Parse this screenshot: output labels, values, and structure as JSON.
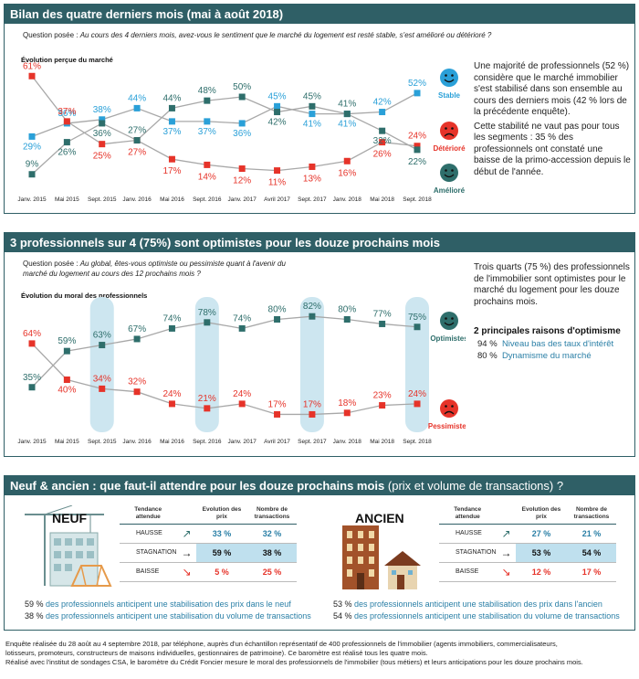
{
  "sections": {
    "s1": {
      "title": "Bilan des quatre derniers mois (mai à août 2018)",
      "question_label": "Question posée :",
      "question_text": "Au cours des 4 derniers mois, avez-vous le sentiment que le marché du logement est resté stable, s'est amélioré ou détérioré ?",
      "subtitle": "Évolution perçue du marché",
      "side_text": [
        "Une majorité de professionnels (52 %) considère que le marché immobilier s'est stabilisé dans son ensemble au cours des derniers mois (42 % lors de la précédente enquête).",
        "Cette stabilité ne vaut pas pour tous les segments : 35 % des professionnels ont constaté une baisse de la primo-accession depuis le début de l'année."
      ]
    },
    "s2": {
      "title": "3 professionnels sur 4 (75%) sont optimistes pour les douze prochains mois",
      "question_label": "Question posée :",
      "question_text": "Au global, êtes-vous optimiste ou pessimiste quant à l'avenir du marché du logement au cours des 12 prochains mois ?",
      "subtitle": "Évolution du moral des professionnels",
      "side_text": [
        "Trois quarts (75 %) des professionnels de l'immobilier sont optimistes pour le marché du logement pour les douze prochains mois."
      ],
      "reasons_title": "2  principales raisons d'optimisme",
      "reasons": [
        {
          "pct": "94 %",
          "label": "Niveau bas des taux d'intérêt"
        },
        {
          "pct": "80 %",
          "label": "Dynamisme du marché"
        }
      ]
    },
    "s3": {
      "title": "Neuf & ancien : que faut-il attendre pour les douze prochains mois",
      "title_light": " (prix et volume de transactions) ?",
      "headers": [
        "Tendance attendue",
        "Evolution des prix",
        "Nombre de transactions"
      ],
      "neuf": {
        "label": "NEUF",
        "rows": [
          {
            "label": "HAUSSE",
            "prix": "33 %",
            "trans": "32 %"
          },
          {
            "label": "STAGNATION",
            "prix": "59 %",
            "trans": "38 %"
          },
          {
            "label": "BAISSE",
            "prix": "5 %",
            "trans": "25 %"
          }
        ],
        "anticip": [
          {
            "pct": "59 %",
            "text": "des professionnels anticipent une stabilisation des prix dans le neuf"
          },
          {
            "pct": "38 %",
            "text": "des professionnels anticipent une stabilisation du volume de transactions"
          }
        ]
      },
      "ancien": {
        "label": "ANCIEN",
        "rows": [
          {
            "label": "HAUSSE",
            "prix": "27 %",
            "trans": "21 %"
          },
          {
            "label": "STAGNATION",
            "prix": "53 %",
            "trans": "54 %"
          },
          {
            "label": "BAISSE",
            "prix": "12 %",
            "trans": "17 %"
          }
        ],
        "anticip": [
          {
            "pct": "53 %",
            "text": "des professionnels anticipent une stabilisation des prix dans l'ancien"
          },
          {
            "pct": "54 %",
            "text": "des professionnels anticipent une stabilisation du volume de transactions"
          }
        ]
      }
    }
  },
  "footnote": [
    "Enquête réalisée du 28 août au 4 septembre 2018, par téléphone, auprès d'un échantillon représentatif de 400 professionnels de l'immobilier (agents immobiliers, commercialisateurs,",
    "lotisseurs,  promoteurs, constructeurs de maisons individuelles, gestionnaires de patrimoine). Ce baromètre est réalisé tous les quatre mois.",
    "Réalisé avec l'institut de sondages CSA, le baromètre du Crédit Foncier mesure le moral des professionnels de l'immobilier (tous métiers) et leurs anticipations pour les douze prochains mois."
  ],
  "colors": {
    "teal": "#2f5f66",
    "blue_series": "#2aa0d8",
    "red_series": "#e63329",
    "dark_series": "#2e6e6b",
    "highlight": "#cde6f0",
    "accent_text": "#2a7fa6"
  },
  "chart_data": [
    {
      "type": "line",
      "categories": [
        "Janv. 2015",
        "Mai 2015",
        "Sept. 2015",
        "Janv. 2016",
        "Mai 2016",
        "Sept. 2016",
        "Janv. 2017",
        "Avril 2017",
        "Sept. 2017",
        "Janv. 2018",
        "Mai 2018",
        "Sept. 2018"
      ],
      "series": [
        {
          "name": "Stable",
          "color": "#2aa0d8",
          "values": [
            29,
            36,
            38,
            44,
            37,
            37,
            36,
            45,
            41,
            41,
            42,
            52
          ],
          "labels": [
            "29%",
            "36%",
            "38%",
            "44%",
            "37%",
            "37%",
            "36%",
            "45%",
            "41%",
            "41%",
            "42%",
            "52%"
          ],
          "icon": "happy-face-icon"
        },
        {
          "name": "Détérioré",
          "color": "#e63329",
          "values": [
            61,
            37,
            25,
            27,
            17,
            14,
            12,
            11,
            13,
            16,
            26,
            24
          ],
          "labels": [
            "61%",
            "37%",
            "25%",
            "27%",
            "17%",
            "14%",
            "12%",
            "11%",
            "13%",
            "16%",
            "26%",
            "24%"
          ],
          "icon": "sad-face-icon"
        },
        {
          "name": "Amélioré",
          "color": "#2e6e6b",
          "values": [
            9,
            26,
            36,
            27,
            44,
            48,
            50,
            42,
            45,
            41,
            32,
            22
          ],
          "labels": [
            "9%",
            "26%",
            "36%",
            "27%",
            "44%",
            "48%",
            "50%",
            "42%",
            "45%",
            "41%",
            "32%",
            "22%"
          ],
          "icon": "happy-face-icon"
        }
      ],
      "ylim": [
        5,
        65
      ],
      "grid": false,
      "legend": "right"
    },
    {
      "type": "line",
      "categories": [
        "Janv. 2015",
        "Mai 2015",
        "Sept. 2015",
        "Janv. 2016",
        "Mai 2016",
        "Sept. 2016",
        "Janv. 2017",
        "Avril 2017",
        "Sept. 2017",
        "Janv. 2018",
        "Mai 2018",
        "Sept. 2018"
      ],
      "highlighted_categories": [
        "Sept. 2015",
        "Sept. 2016",
        "Sept. 2017",
        "Sept. 2018"
      ],
      "series": [
        {
          "name": "Optimistes",
          "color": "#2e6e6b",
          "values": [
            35,
            59,
            63,
            67,
            74,
            78,
            74,
            80,
            82,
            80,
            77,
            75
          ],
          "labels": [
            "35%",
            "59%",
            "63%",
            "67%",
            "74%",
            "78%",
            "74%",
            "80%",
            "82%",
            "80%",
            "77%",
            "75%"
          ],
          "icon": "happy-face-icon"
        },
        {
          "name": "Pessimistes",
          "color": "#e63329",
          "values": [
            64,
            40,
            34,
            32,
            24,
            21,
            24,
            17,
            17,
            18,
            23,
            24
          ],
          "labels": [
            "64%",
            "40%",
            "34%",
            "32%",
            "24%",
            "21%",
            "24%",
            "17%",
            "17%",
            "18%",
            "23%",
            "24%"
          ],
          "icon": "sad-face-icon"
        }
      ],
      "ylim": [
        10,
        90
      ],
      "grid": false,
      "legend": "right"
    }
  ]
}
